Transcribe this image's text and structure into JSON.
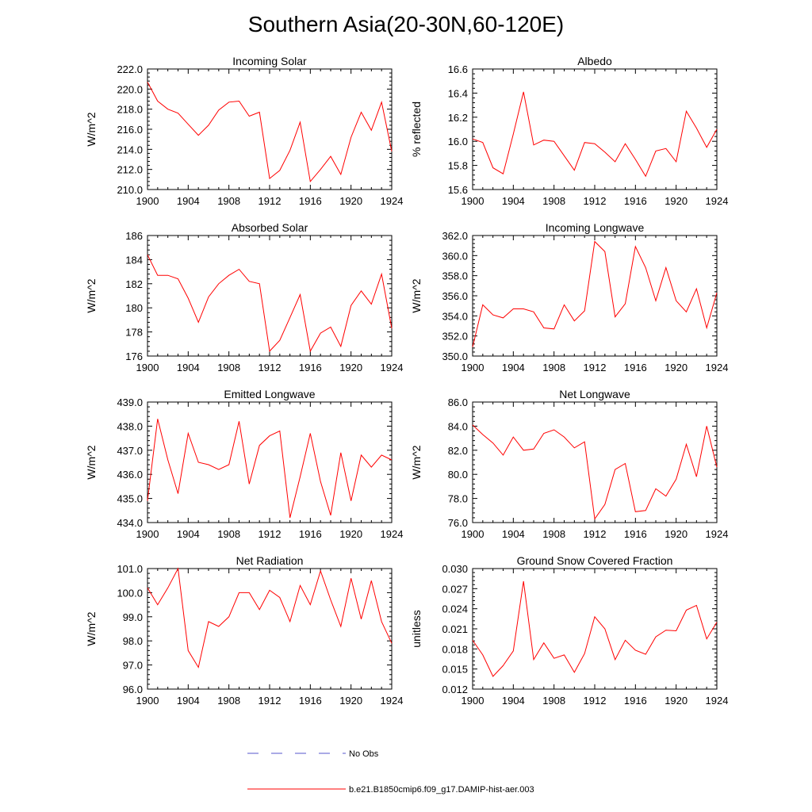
{
  "figure": {
    "title": "Southern Asia(20-30N,60-120E)"
  },
  "legend": {
    "no_obs": {
      "label": "No Obs",
      "color": "#5555cc",
      "dashed": true
    },
    "model": {
      "label": "b.e21.B1850cmip6.f09_g17.DAMIP-hist-aer.003",
      "color": "#ff0000"
    }
  },
  "chart_data": [
    {
      "type": "line",
      "title": "Incoming Solar",
      "ylabel": "W/m^2",
      "xlim": [
        1900,
        1924
      ],
      "ylim": [
        210,
        222
      ],
      "yticks": [
        "210.0",
        "212.0",
        "214.0",
        "216.0",
        "218.0",
        "220.0",
        "222.0"
      ],
      "xticks": [
        "1900",
        "1904",
        "1908",
        "1912",
        "1916",
        "1920",
        "1924"
      ],
      "x": [
        1900,
        1901,
        1902,
        1903,
        1904,
        1905,
        1906,
        1907,
        1908,
        1909,
        1910,
        1911,
        1912,
        1913,
        1914,
        1915,
        1916,
        1917,
        1918,
        1919,
        1920,
        1921,
        1922,
        1923,
        1924
      ],
      "series": [
        {
          "values": [
            220.7,
            218.8,
            218.0,
            217.6,
            216.5,
            215.4,
            216.4,
            217.9,
            218.7,
            218.8,
            217.3,
            217.7,
            211.1,
            211.9,
            213.9,
            216.7,
            210.8,
            212.0,
            213.3,
            211.5,
            215.2,
            217.7,
            215.9,
            218.7,
            213.8
          ]
        }
      ]
    },
    {
      "type": "line",
      "title": "Albedo",
      "ylabel": "% reflected",
      "xlim": [
        1900,
        1924
      ],
      "ylim": [
        15.6,
        16.6
      ],
      "yticks": [
        "15.6",
        "15.8",
        "16.0",
        "16.2",
        "16.4",
        "16.6"
      ],
      "xticks": [
        "1900",
        "1904",
        "1908",
        "1912",
        "1916",
        "1920",
        "1924"
      ],
      "x": [
        1900,
        1901,
        1902,
        1903,
        1904,
        1905,
        1906,
        1907,
        1908,
        1909,
        1910,
        1911,
        1912,
        1913,
        1914,
        1915,
        1916,
        1917,
        1918,
        1919,
        1920,
        1921,
        1922,
        1923,
        1924
      ],
      "series": [
        {
          "values": [
            16.02,
            15.99,
            15.78,
            15.73,
            16.06,
            16.41,
            15.97,
            16.01,
            16.0,
            15.88,
            15.76,
            15.99,
            15.98,
            15.91,
            15.83,
            15.98,
            15.85,
            15.71,
            15.92,
            15.94,
            15.83,
            16.25,
            16.11,
            15.95,
            16.1
          ]
        }
      ]
    },
    {
      "type": "line",
      "title": "Absorbed Solar",
      "ylabel": "W/m^2",
      "xlim": [
        1900,
        1924
      ],
      "ylim": [
        176,
        186
      ],
      "yticks": [
        "176",
        "178",
        "180",
        "182",
        "184",
        "186"
      ],
      "xticks": [
        "1900",
        "1904",
        "1908",
        "1912",
        "1916",
        "1920",
        "1924"
      ],
      "x": [
        1900,
        1901,
        1902,
        1903,
        1904,
        1905,
        1906,
        1907,
        1908,
        1909,
        1910,
        1911,
        1912,
        1913,
        1914,
        1915,
        1916,
        1917,
        1918,
        1919,
        1920,
        1921,
        1922,
        1923,
        1924
      ],
      "series": [
        {
          "values": [
            184.4,
            182.7,
            182.7,
            182.4,
            180.8,
            178.8,
            180.9,
            182.0,
            182.7,
            183.2,
            182.2,
            182.0,
            176.4,
            177.3,
            179.2,
            181.1,
            176.4,
            177.9,
            178.4,
            176.8,
            180.2,
            181.4,
            180.3,
            182.8,
            178.3
          ]
        }
      ]
    },
    {
      "type": "line",
      "title": "Incoming Longwave",
      "ylabel": "W/m^2",
      "xlim": [
        1900,
        1924
      ],
      "ylim": [
        350,
        362
      ],
      "yticks": [
        "350.0",
        "352.0",
        "354.0",
        "356.0",
        "358.0",
        "360.0",
        "362.0"
      ],
      "xticks": [
        "1900",
        "1904",
        "1908",
        "1912",
        "1916",
        "1920",
        "1924"
      ],
      "x": [
        1900,
        1901,
        1902,
        1903,
        1904,
        1905,
        1906,
        1907,
        1908,
        1909,
        1910,
        1911,
        1912,
        1913,
        1914,
        1915,
        1916,
        1917,
        1918,
        1919,
        1920,
        1921,
        1922,
        1923,
        1924
      ],
      "series": [
        {
          "values": [
            350.9,
            355.1,
            354.1,
            353.8,
            354.7,
            354.7,
            354.4,
            352.8,
            352.7,
            355.1,
            353.5,
            354.5,
            361.4,
            360.4,
            353.9,
            355.2,
            360.9,
            358.8,
            355.5,
            358.8,
            355.5,
            354.4,
            356.7,
            352.8,
            356.3
          ]
        }
      ]
    },
    {
      "type": "line",
      "title": "Emitted Longwave",
      "ylabel": "W/m^2",
      "xlim": [
        1900,
        1924
      ],
      "ylim": [
        434,
        439
      ],
      "yticks": [
        "434.0",
        "435.0",
        "436.0",
        "437.0",
        "438.0",
        "439.0"
      ],
      "xticks": [
        "1900",
        "1904",
        "1908",
        "1912",
        "1916",
        "1920",
        "1924"
      ],
      "x": [
        1900,
        1901,
        1902,
        1903,
        1904,
        1905,
        1906,
        1907,
        1908,
        1909,
        1910,
        1911,
        1912,
        1913,
        1914,
        1915,
        1916,
        1917,
        1918,
        1919,
        1920,
        1921,
        1922,
        1923,
        1924
      ],
      "series": [
        {
          "values": [
            434.9,
            438.3,
            436.6,
            435.2,
            437.7,
            436.5,
            436.4,
            436.2,
            436.4,
            438.2,
            435.6,
            437.2,
            437.6,
            437.8,
            434.2,
            435.9,
            437.7,
            435.7,
            434.3,
            436.9,
            434.9,
            436.8,
            436.3,
            436.8,
            436.6
          ]
        }
      ]
    },
    {
      "type": "line",
      "title": "Net Longwave",
      "ylabel": "W/m^2",
      "xlim": [
        1900,
        1924
      ],
      "ylim": [
        76,
        86
      ],
      "yticks": [
        "76.0",
        "78.0",
        "80.0",
        "82.0",
        "84.0",
        "86.0"
      ],
      "xticks": [
        "1900",
        "1904",
        "1908",
        "1912",
        "1916",
        "1920",
        "1924"
      ],
      "x": [
        1900,
        1901,
        1902,
        1903,
        1904,
        1905,
        1906,
        1907,
        1908,
        1909,
        1910,
        1911,
        1912,
        1913,
        1914,
        1915,
        1916,
        1917,
        1918,
        1919,
        1920,
        1921,
        1922,
        1923,
        1924
      ],
      "series": [
        {
          "values": [
            84.1,
            83.3,
            82.6,
            81.6,
            83.1,
            82.0,
            82.1,
            83.4,
            83.7,
            83.1,
            82.2,
            82.7,
            76.3,
            77.5,
            80.4,
            80.9,
            76.9,
            77.0,
            78.8,
            78.2,
            79.6,
            82.5,
            79.8,
            84.0,
            80.6
          ]
        }
      ]
    },
    {
      "type": "line",
      "title": "Net Radiation",
      "ylabel": "W/m^2",
      "xlim": [
        1900,
        1924
      ],
      "ylim": [
        96,
        101
      ],
      "yticks": [
        "96.0",
        "97.0",
        "98.0",
        "99.0",
        "100.0",
        "101.0"
      ],
      "xticks": [
        "1900",
        "1904",
        "1908",
        "1912",
        "1916",
        "1920",
        "1924"
      ],
      "x": [
        1900,
        1901,
        1902,
        1903,
        1904,
        1905,
        1906,
        1907,
        1908,
        1909,
        1910,
        1911,
        1912,
        1913,
        1914,
        1915,
        1916,
        1917,
        1918,
        1919,
        1920,
        1921,
        1922,
        1923,
        1924
      ],
      "series": [
        {
          "values": [
            100.2,
            99.5,
            100.2,
            101.0,
            97.6,
            96.9,
            98.8,
            98.6,
            99.0,
            100.0,
            100.0,
            99.3,
            100.1,
            99.8,
            98.8,
            100.3,
            99.5,
            100.9,
            99.7,
            98.6,
            100.6,
            98.9,
            100.5,
            98.8,
            97.9
          ]
        }
      ]
    },
    {
      "type": "line",
      "title": "Ground Snow Covered Fraction",
      "ylabel": "unitless",
      "xlim": [
        1900,
        1924
      ],
      "ylim": [
        0.012,
        0.03
      ],
      "yticks": [
        "0.012",
        "0.015",
        "0.018",
        "0.021",
        "0.024",
        "0.027",
        "0.030"
      ],
      "xticks": [
        "1900",
        "1904",
        "1908",
        "1912",
        "1916",
        "1920",
        "1924"
      ],
      "x": [
        1900,
        1901,
        1902,
        1903,
        1904,
        1905,
        1906,
        1907,
        1908,
        1909,
        1910,
        1911,
        1912,
        1913,
        1914,
        1915,
        1916,
        1917,
        1918,
        1919,
        1920,
        1921,
        1922,
        1923,
        1924
      ],
      "series": [
        {
          "values": [
            0.0193,
            0.0171,
            0.0139,
            0.0155,
            0.0177,
            0.0281,
            0.0164,
            0.0189,
            0.0166,
            0.0171,
            0.0145,
            0.0173,
            0.0228,
            0.021,
            0.0164,
            0.0193,
            0.0178,
            0.0172,
            0.0198,
            0.0208,
            0.0207,
            0.0238,
            0.0245,
            0.0195,
            0.022
          ]
        }
      ]
    }
  ]
}
